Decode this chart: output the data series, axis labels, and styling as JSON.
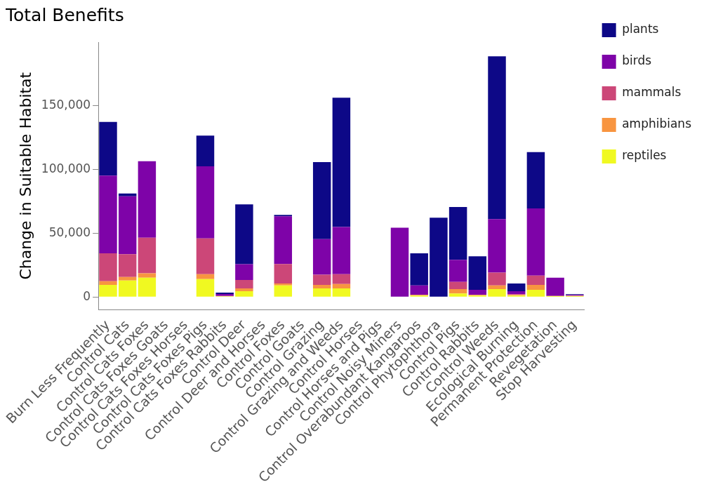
{
  "chart_data": {
    "type": "bar",
    "title": "Total Benefits",
    "ylabel": "Change in Suitable Habitat",
    "stacked": true,
    "legend": "top right",
    "grid": false,
    "categories": [
      "Burn Less Frequently",
      "Control Cats",
      "Control Cats Foxes",
      "Control Cats Foxes Goats",
      "Control Cats Foxes Horses",
      "Control Cats Foxes Pigs",
      "Control Cats Foxes Rabbits",
      "Control Deer",
      "Control Deer and Horses",
      "Control Foxes",
      "Control Goats",
      "Control Grazing",
      "Control Grazing and Weeds",
      "Control Horses",
      "Control Horses and Pigs",
      "Control Noisy Miners",
      "Control Overabundant Kangaroos",
      "Control Phytophthora",
      "Control Pigs",
      "Control Rabbits",
      "Control Weeds",
      "Ecological Burning",
      "Permanent Protection",
      "Revegetation",
      "Stop Harvesting"
    ],
    "series": [
      {
        "name": "reptiles",
        "color": "#f0f921",
        "values": [
          9500,
          12900,
          15100,
          0,
          0,
          14000,
          500,
          4500,
          0,
          9000,
          0,
          6700,
          6700,
          0,
          0,
          0,
          1100,
          0,
          2800,
          1100,
          6200,
          1100,
          5600,
          600,
          600
        ]
      },
      {
        "name": "amphibians",
        "color": "#f89540",
        "values": [
          2800,
          2800,
          3400,
          0,
          0,
          3900,
          0,
          2200,
          0,
          1600,
          0,
          2800,
          3400,
          0,
          0,
          0,
          600,
          0,
          3400,
          600,
          2800,
          600,
          3900,
          200,
          200
        ]
      },
      {
        "name": "mammals",
        "color": "#cc4778",
        "values": [
          21900,
          17900,
          28000,
          0,
          0,
          28000,
          300,
          6700,
          0,
          15200,
          0,
          7900,
          7800,
          0,
          0,
          0,
          0,
          0,
          5600,
          0,
          10100,
          500,
          7300,
          0,
          200
        ]
      },
      {
        "name": "birds",
        "color": "#7e03a8",
        "values": [
          61100,
          45400,
          60000,
          0,
          0,
          56600,
          1500,
          12300,
          0,
          37500,
          0,
          28000,
          37000,
          0,
          0,
          54400,
          7300,
          0,
          17300,
          3900,
          42000,
          2300,
          52700,
          14300,
          700
        ]
      },
      {
        "name": "plants",
        "color": "#0d0887",
        "values": [
          42000,
          2200,
          0,
          0,
          0,
          24100,
          1100,
          47000,
          0,
          1100,
          0,
          60500,
          101400,
          0,
          0,
          0,
          25200,
          62200,
          41500,
          26300,
          127700,
          6100,
          44200,
          0,
          500
        ]
      }
    ],
    "ylim": [
      -10000,
      200000
    ],
    "yticks": [
      {
        "value": 0,
        "label": "0"
      },
      {
        "value": 50000,
        "label": "50,000"
      },
      {
        "value": 100000,
        "label": "100,000"
      },
      {
        "value": 150000,
        "label": "150,000"
      }
    ]
  }
}
